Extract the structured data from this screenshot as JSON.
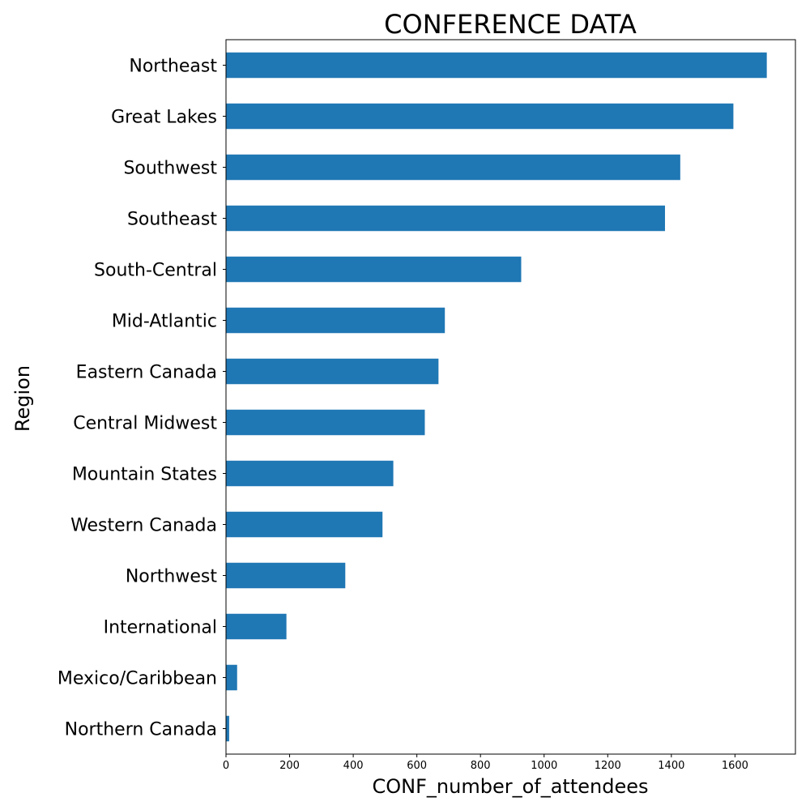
{
  "chart_data": {
    "type": "bar",
    "orientation": "horizontal",
    "title": "CONFERENCE DATA",
    "xlabel": "CONF_number_of_attendees",
    "ylabel": "Region",
    "categories": [
      "Northeast",
      "Great Lakes",
      "Southwest",
      "Southeast",
      "South-Central",
      "Mid-Atlantic",
      "Eastern Canada",
      "Central Midwest",
      "Mountain States",
      "Western Canada",
      "Northwest",
      "International",
      "Mexico/Caribbean",
      "Northern Canada"
    ],
    "values": [
      1700,
      1595,
      1428,
      1380,
      928,
      688,
      668,
      625,
      526,
      492,
      375,
      190,
      35,
      10
    ],
    "xlim": [
      0,
      1790
    ],
    "xticks": [
      0,
      200,
      400,
      600,
      800,
      1000,
      1200,
      1400,
      1600
    ],
    "grid": false,
    "bar_color": "#1f77b4"
  }
}
